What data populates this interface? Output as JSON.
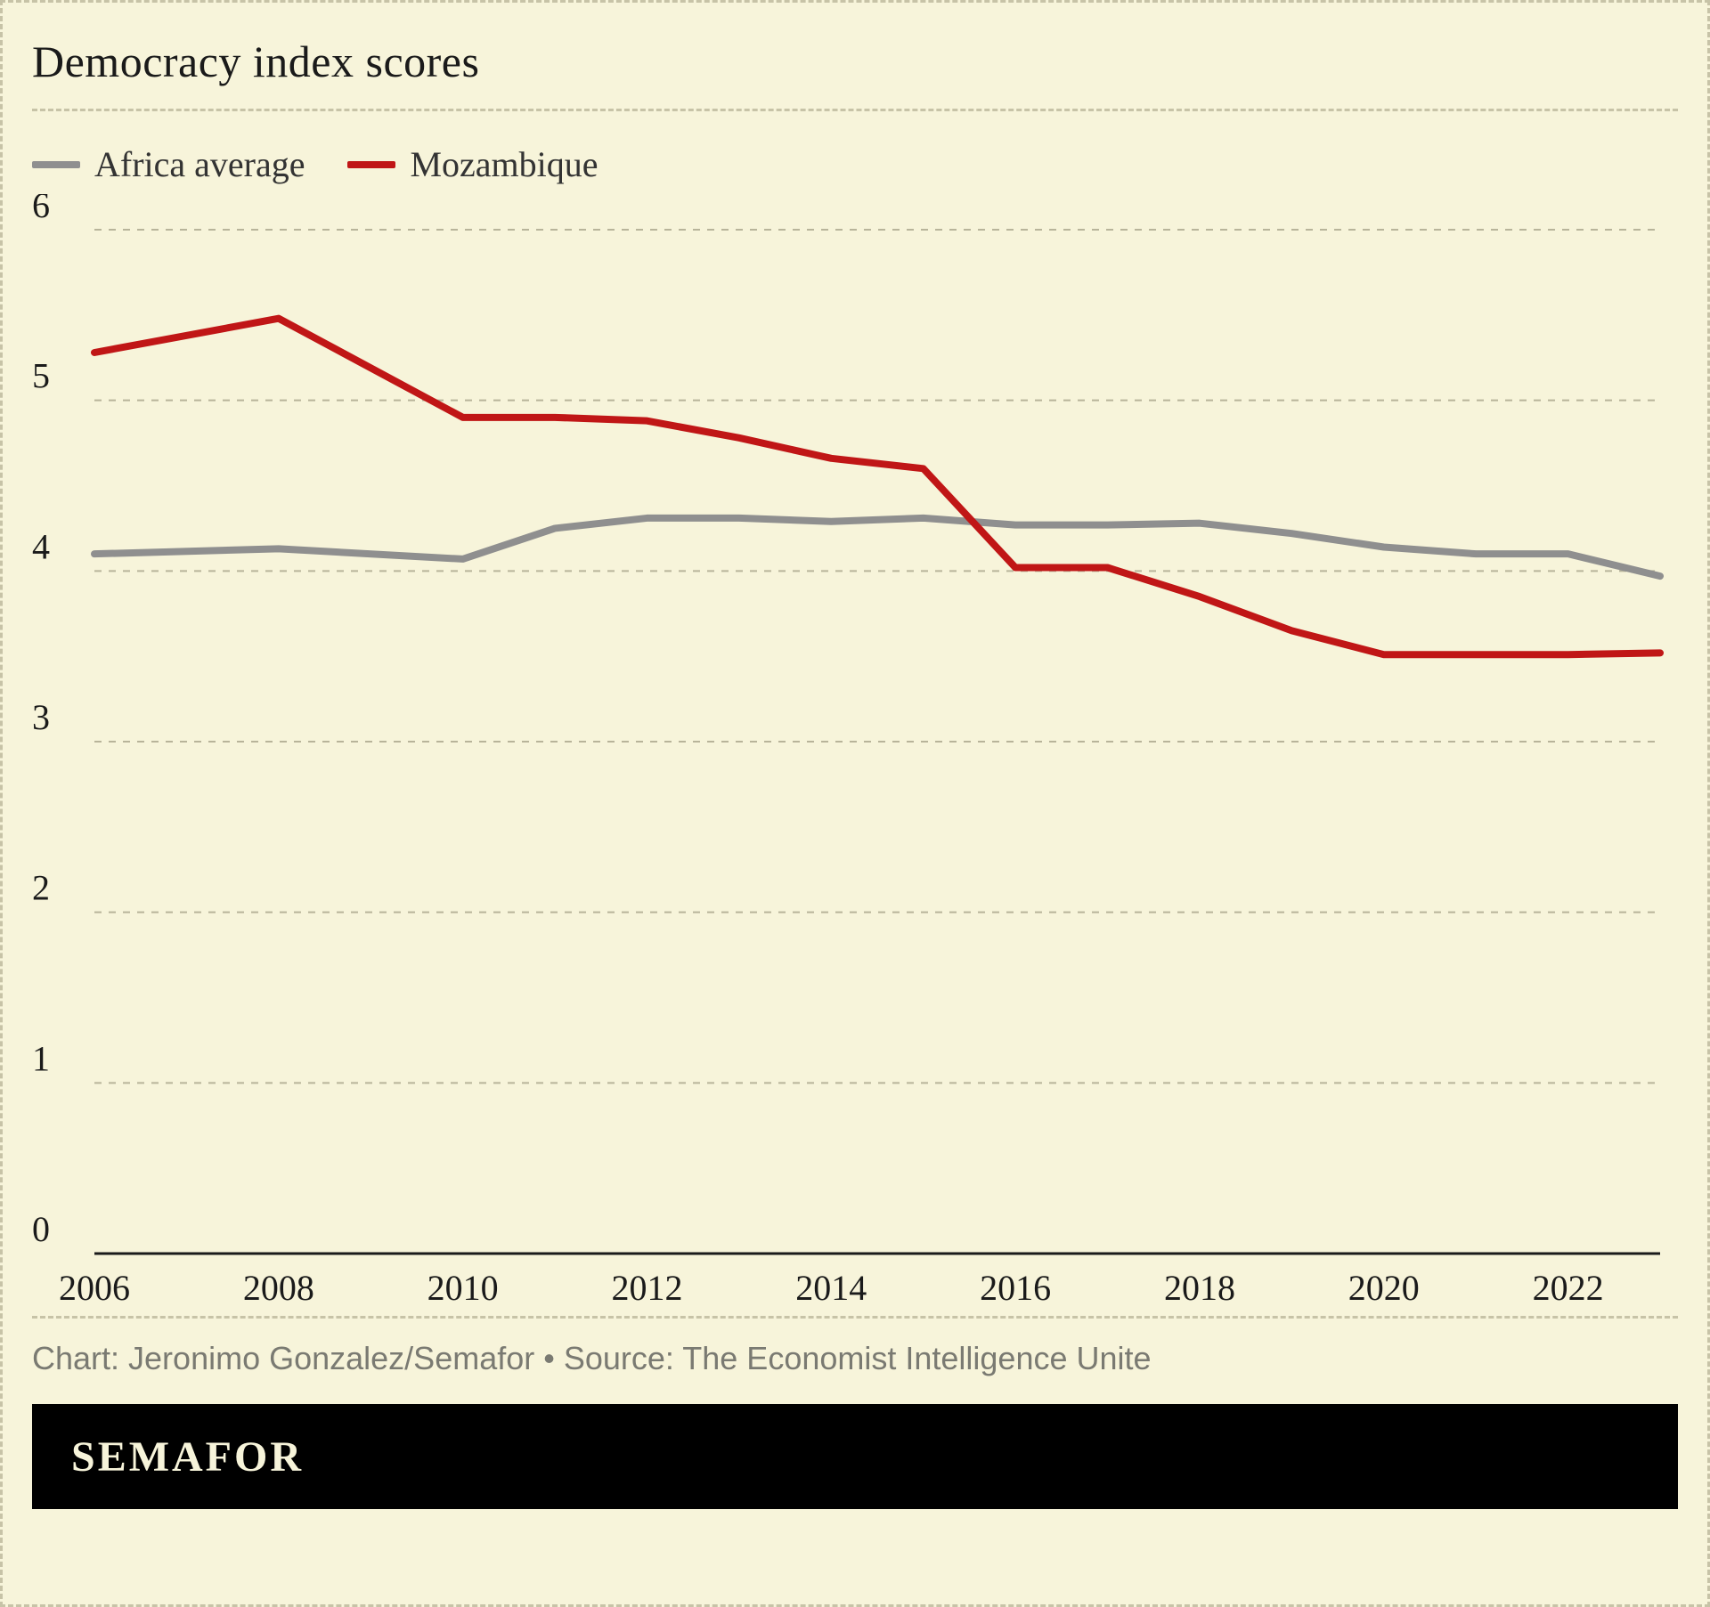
{
  "title": "Democracy index scores",
  "legend": {
    "items": [
      {
        "key": "africa",
        "label": "Africa average"
      },
      {
        "key": "moz",
        "label": "Mozambique"
      }
    ]
  },
  "chart": {
    "type": "line",
    "background_color": "#f7f4da",
    "grid_color": "#b8b49a",
    "baseline_color": "#1a1a1a",
    "line_width": 8,
    "grid_dash": "8 8",
    "x": {
      "min": 2006,
      "max": 2023,
      "ticks": [
        2006,
        2008,
        2010,
        2012,
        2014,
        2016,
        2018,
        2020,
        2022
      ],
      "fontsize": 40
    },
    "y": {
      "min": 0,
      "max": 6,
      "ticks": [
        0,
        1,
        2,
        3,
        4,
        5,
        6
      ],
      "fontsize": 40
    },
    "series": {
      "africa": {
        "label": "Africa average",
        "color": "#8f8f8f",
        "years": [
          2006,
          2008,
          2010,
          2011,
          2012,
          2013,
          2014,
          2015,
          2016,
          2017,
          2018,
          2019,
          2020,
          2021,
          2022,
          2023
        ],
        "values": [
          4.1,
          4.13,
          4.07,
          4.25,
          4.31,
          4.31,
          4.29,
          4.31,
          4.27,
          4.27,
          4.28,
          4.22,
          4.14,
          4.1,
          4.1,
          3.97
        ]
      },
      "moz": {
        "label": "Mozambique",
        "color": "#c01616",
        "years": [
          2006,
          2008,
          2010,
          2011,
          2012,
          2013,
          2014,
          2015,
          2016,
          2017,
          2018,
          2019,
          2020,
          2021,
          2022,
          2023
        ],
        "values": [
          5.28,
          5.48,
          4.9,
          4.9,
          4.88,
          4.78,
          4.66,
          4.6,
          4.02,
          4.02,
          3.85,
          3.65,
          3.51,
          3.51,
          3.51,
          3.52
        ]
      }
    }
  },
  "credit": "Chart: Jeronimo Gonzalez/Semafor • Source: The Economist Intelligence Unite",
  "brand": "SEMAFOR"
}
